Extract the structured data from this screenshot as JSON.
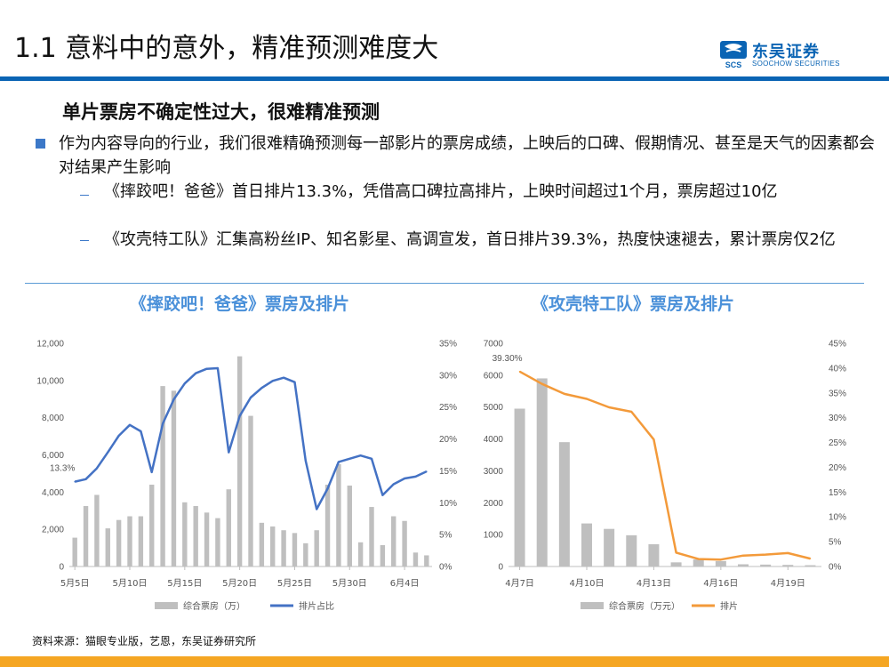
{
  "header": {
    "title": "1.1 意料中的意外，精准预测难度大",
    "logo_cn": "东吴证券",
    "logo_en": "SOOCHOW SECURITIES",
    "logo_mark_text": "SCS"
  },
  "content": {
    "subtitle": "单片票房不确定性过大，很难精准预测",
    "bullet": "作为内容导向的行业，我们很难精确预测每一部影片的票房成绩，上映后的口碑、假期情况、甚至是天气的因素都会对结果产生影响",
    "sub_bullets": [
      "《摔跤吧！爸爸》首日排片13.3%，凭借高口碑拉高排片，上映时间超过1个月，票房超过10亿",
      "《攻壳特工队》汇集高粉丝IP、知名影星、高调宣发，首日排片39.3%，热度快速褪去，累计票房仅2亿"
    ]
  },
  "chart_data": [
    {
      "type": "bar",
      "title": "《摔跤吧！爸爸》票房及排片",
      "x_tick_labels": [
        "5月5日",
        "5月10日",
        "5月15日",
        "5月20日",
        "5月25日",
        "5月30日",
        "6月4日"
      ],
      "y_left_ticks": [
        "0",
        "2,000",
        "4,000",
        "6,000",
        "8,000",
        "10,000",
        "12,000"
      ],
      "y_right_ticks": [
        "0%",
        "5%",
        "10%",
        "15%",
        "20%",
        "25%",
        "30%",
        "35%"
      ],
      "ylim_left": [
        0,
        12000
      ],
      "ylim_right": [
        0,
        35
      ],
      "annotation": "13.3%",
      "legend_position": "bottom",
      "colors": {
        "bar": "#bfbfbf",
        "line": "#4472c4"
      },
      "series": [
        {
          "name": "综合票房（万）",
          "kind": "bar",
          "axis": "left",
          "values": [
            1550,
            3250,
            3850,
            2050,
            2500,
            2700,
            2700,
            4400,
            9700,
            9450,
            3450,
            3250,
            2900,
            2600,
            4150,
            11300,
            8100,
            2350,
            2150,
            1950,
            1800,
            1250,
            1950,
            4400,
            5500,
            4350,
            1300,
            3200,
            1150,
            2700,
            2450,
            750,
            600
          ]
        },
        {
          "name": "排片占比",
          "kind": "line",
          "axis": "right",
          "values": [
            13.3,
            13.7,
            15.4,
            17.9,
            20.5,
            22.2,
            21.2,
            14.8,
            22.4,
            26.2,
            28.7,
            30.3,
            31.0,
            31.1,
            17.9,
            23.6,
            26.5,
            28.0,
            29.1,
            29.6,
            28.9,
            16.6,
            9.0,
            12.2,
            16.4,
            16.9,
            17.4,
            16.9,
            11.2,
            12.9,
            13.8,
            14.1,
            14.9
          ]
        }
      ]
    },
    {
      "type": "bar",
      "title": "《攻壳特工队》票房及排片",
      "x_tick_labels": [
        "4月7日",
        "4月10日",
        "4月13日",
        "4月16日",
        "4月19日"
      ],
      "y_left_ticks": [
        "0",
        "1000",
        "2000",
        "3000",
        "4000",
        "5000",
        "6000",
        "7000"
      ],
      "y_right_ticks": [
        "0%",
        "5%",
        "10%",
        "15%",
        "20%",
        "25%",
        "30%",
        "35%",
        "40%",
        "45%"
      ],
      "ylim_left": [
        0,
        7000
      ],
      "ylim_right": [
        0,
        45
      ],
      "annotation": "39.30%",
      "legend_position": "bottom",
      "colors": {
        "bar": "#bfbfbf",
        "line": "#f39a3a"
      },
      "series": [
        {
          "name": "综合票房（万元）",
          "kind": "bar",
          "axis": "left",
          "values": [
            4950,
            5900,
            3900,
            1350,
            1180,
            980,
            700,
            130,
            220,
            170,
            70,
            60,
            50,
            40
          ]
        },
        {
          "name": "排片",
          "kind": "line",
          "axis": "right",
          "values": [
            39.3,
            36.8,
            34.8,
            33.8,
            32.1,
            31.2,
            25.6,
            2.8,
            1.5,
            1.4,
            2.2,
            2.4,
            2.7,
            1.6
          ]
        }
      ]
    }
  ],
  "footer": {
    "source": "资料来源：猫眼专业版，艺恩，东吴证券研究所"
  }
}
